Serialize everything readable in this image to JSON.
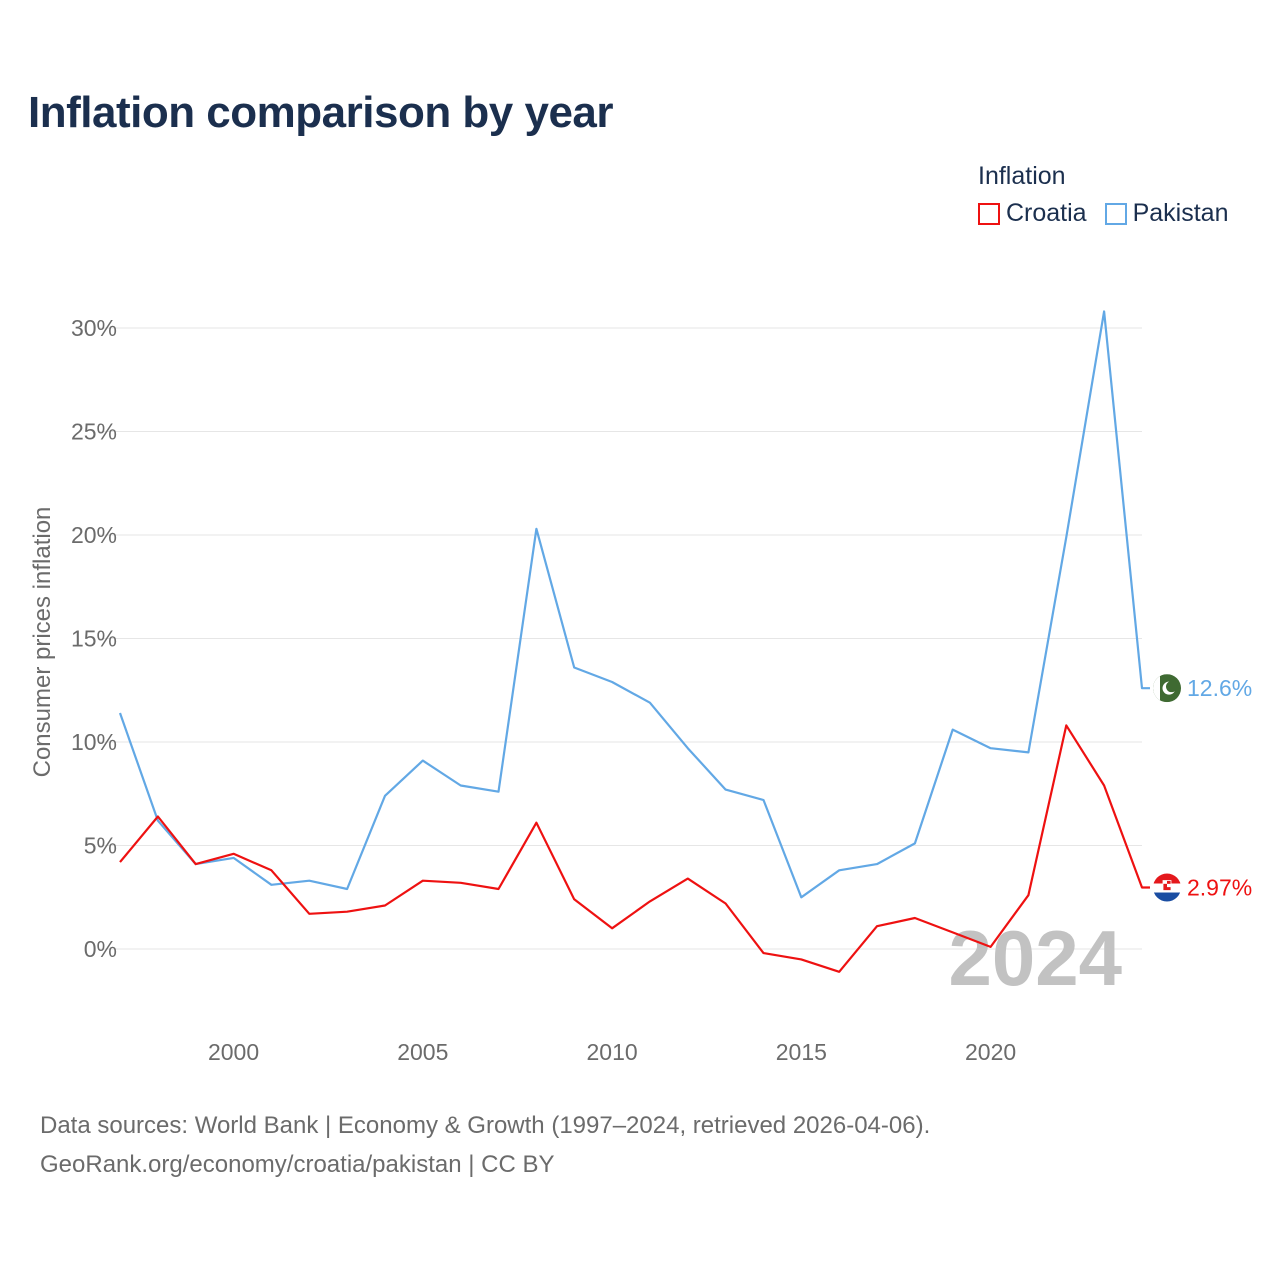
{
  "title": "Inflation comparison by year",
  "legend": {
    "title": "Inflation",
    "items": [
      {
        "label": "Croatia",
        "color": "#ee1111"
      },
      {
        "label": "Pakistan",
        "color": "#62a8e5"
      }
    ]
  },
  "footer": {
    "line1": "Data sources: World Bank | Economy & Growth (1997–2024, retrieved 2026-04-06).",
    "line2": "GeoRank.org/economy/croatia/pakistan | CC BY"
  },
  "chart_data": {
    "type": "line",
    "title": "Inflation comparison by year",
    "xlabel": "",
    "ylabel": "Consumer prices inflation",
    "x": [
      1997,
      1998,
      1999,
      2000,
      2001,
      2002,
      2003,
      2004,
      2005,
      2006,
      2007,
      2008,
      2009,
      2010,
      2011,
      2012,
      2013,
      2014,
      2015,
      2016,
      2017,
      2018,
      2019,
      2020,
      2021,
      2022,
      2023,
      2024
    ],
    "xlim": [
      1997,
      2024
    ],
    "ylim": [
      -4,
      31
    ],
    "xticks": [
      2000,
      2005,
      2010,
      2015,
      2020
    ],
    "yticks": [
      0,
      5,
      10,
      15,
      20,
      25,
      30
    ],
    "ytick_labels": [
      "0%",
      "5%",
      "10%",
      "15%",
      "20%",
      "25%",
      "30%"
    ],
    "year_watermark": "2024",
    "series": [
      {
        "name": "Croatia",
        "color": "#ee1111",
        "end_label": "2.97%",
        "flag": "croatia-flag-icon",
        "values": [
          4.2,
          6.4,
          4.1,
          4.6,
          3.8,
          1.7,
          1.8,
          2.1,
          3.3,
          3.2,
          2.9,
          6.1,
          2.4,
          1.0,
          2.3,
          3.4,
          2.2,
          -0.2,
          -0.5,
          -1.1,
          1.1,
          1.5,
          0.8,
          0.1,
          2.6,
          10.8,
          7.9,
          2.97
        ]
      },
      {
        "name": "Pakistan",
        "color": "#62a8e5",
        "end_label": "12.6%",
        "flag": "pakistan-flag-icon",
        "values": [
          11.4,
          6.2,
          4.1,
          4.4,
          3.1,
          3.3,
          2.9,
          7.4,
          9.1,
          7.9,
          7.6,
          20.3,
          13.6,
          12.9,
          11.9,
          9.7,
          7.7,
          7.2,
          2.5,
          3.8,
          4.1,
          5.1,
          10.6,
          9.7,
          9.5,
          19.9,
          30.8,
          12.6
        ]
      }
    ]
  }
}
